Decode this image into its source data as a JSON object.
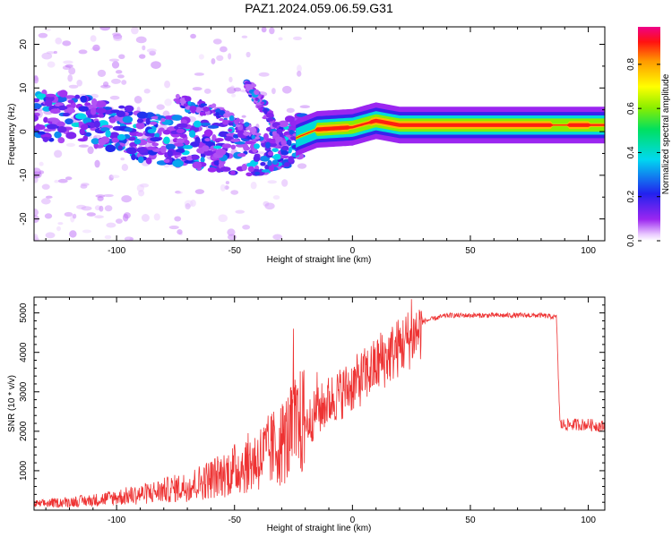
{
  "title": "PAZ1.2024.059.06.59.G31",
  "chart_data": [
    {
      "type": "heatmap",
      "xlabel": "Height of straight line (km)",
      "ylabel": "Frequency (Hz)",
      "xlim": [
        -135,
        107
      ],
      "ylim": [
        -25,
        24
      ],
      "xticks": [
        -100,
        -50,
        0,
        50,
        100
      ],
      "yticks": [
        -20,
        -10,
        0,
        10,
        20
      ],
      "colorbar": {
        "label": "Normalized spectral amplitude",
        "range": [
          0.0,
          0.97
        ],
        "ticks": [
          0.0,
          0.2,
          0.4,
          0.6,
          0.8
        ],
        "colormap": "rainbow (purple to red)"
      },
      "ridge": {
        "description_free": true,
        "points": [
          [
            -120,
            3.5
          ],
          [
            -110,
            2.0
          ],
          [
            -100,
            1.0
          ],
          [
            -90,
            -1.0
          ],
          [
            -80,
            -2.0
          ],
          [
            -70,
            -2.5
          ],
          [
            -60,
            -3.5
          ],
          [
            -50,
            -4.0
          ],
          [
            -40,
            -5.0
          ],
          [
            -30,
            -3.0
          ],
          [
            -22,
            -1.0
          ],
          [
            -15,
            0.5
          ],
          [
            0,
            1.0
          ],
          [
            10,
            2.5
          ],
          [
            20,
            1.5
          ],
          [
            40,
            1.5
          ],
          [
            60,
            1.5
          ],
          [
            80,
            1.5
          ],
          [
            100,
            1.5
          ],
          [
            107,
            1.5
          ]
        ]
      },
      "secondary_branches": [
        [
          [
            -75,
            7
          ],
          [
            -60,
            5
          ],
          [
            -50,
            2
          ],
          [
            -40,
            -1
          ]
        ],
        [
          [
            -45,
            11
          ],
          [
            -38,
            6
          ],
          [
            -32,
            0
          ],
          [
            -28,
            -5
          ]
        ]
      ]
    },
    {
      "type": "line",
      "xlabel": "Height of straight line (km)",
      "ylabel": "SNR (10 * v/v)",
      "xlim": [
        -135,
        107
      ],
      "ylim": [
        0,
        5400
      ],
      "xticks": [
        -100,
        -50,
        0,
        50,
        100
      ],
      "yticks": [
        1000,
        2000,
        3000,
        4000,
        5000
      ],
      "series": [
        {
          "color": "#ee3333",
          "envelope": [
            [
              -135,
              150
            ],
            [
              -110,
              250
            ],
            [
              -90,
              400
            ],
            [
              -70,
              600
            ],
            [
              -55,
              900
            ],
            [
              -40,
              1300
            ],
            [
              -30,
              1700
            ],
            [
              -20,
              2300
            ],
            [
              -10,
              2900
            ],
            [
              0,
              3300
            ],
            [
              10,
              3800
            ],
            [
              20,
              4300
            ],
            [
              30,
              4800
            ],
            [
              40,
              4950
            ],
            [
              60,
              4950
            ],
            [
              80,
              4950
            ],
            [
              86.5,
              4900
            ],
            [
              88,
              2200
            ],
            [
              100,
              2200
            ],
            [
              107,
              2150
            ]
          ],
          "spikes": [
            [
              -25,
              4600
            ],
            [
              -15,
              3500
            ],
            [
              12,
              4500
            ],
            [
              25,
              5350
            ]
          ]
        }
      ]
    }
  ]
}
